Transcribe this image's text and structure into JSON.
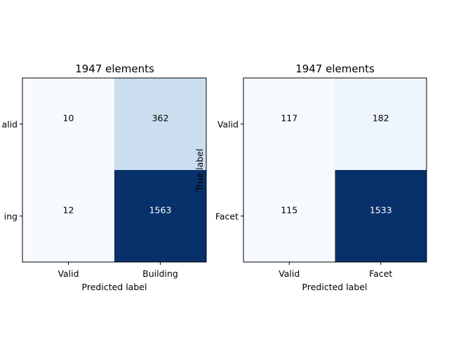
{
  "chart_data": [
    {
      "type": "heatmap",
      "title": "1947 elements",
      "xlabel": "Predicted label",
      "ylabel": "",
      "x_categories": [
        "Valid",
        "Building"
      ],
      "y_categories": [
        "Valid",
        "Building"
      ],
      "y_tick_labels_visible": [
        "alid",
        "ing"
      ],
      "values": [
        [
          10,
          362
        ],
        [
          12,
          1563
        ]
      ],
      "colormap": "Blues",
      "vmin": 10,
      "vmax": 1563,
      "text_dark": "#000000",
      "text_light": "#ffffff"
    },
    {
      "type": "heatmap",
      "title": "1947 elements",
      "xlabel": "Predicted label",
      "ylabel": "True label",
      "x_categories": [
        "Valid",
        "Facet"
      ],
      "y_categories": [
        "Valid",
        "Facet"
      ],
      "y_tick_labels_visible": [
        "Valid",
        "Facet"
      ],
      "values": [
        [
          117,
          182
        ],
        [
          115,
          1533
        ]
      ],
      "colormap": "Blues",
      "vmin": 115,
      "vmax": 1533,
      "text_dark": "#000000",
      "text_light": "#ffffff"
    }
  ]
}
